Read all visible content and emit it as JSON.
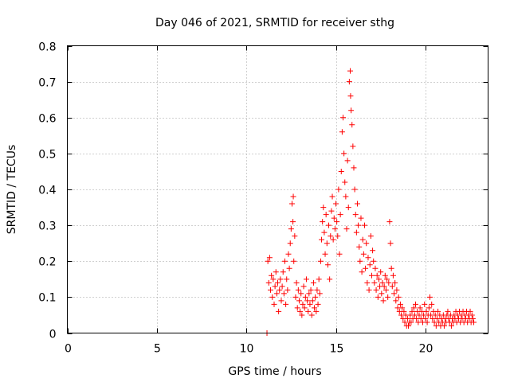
{
  "chart_data": {
    "type": "scatter",
    "title": "Day 046 of 2021, SRMTID for receiver sthg",
    "xlabel": "GPS time / hours",
    "ylabel": "SRMTID / TECUs",
    "xlim": [
      0,
      23.5
    ],
    "ylim": [
      0,
      0.8
    ],
    "xticks": [
      0,
      5,
      10,
      15,
      20
    ],
    "xtick_labels": [
      "0",
      "5",
      "10",
      "15",
      "20"
    ],
    "yticks": [
      0,
      0.1,
      0.2,
      0.3,
      0.4,
      0.5,
      0.6,
      0.7,
      0.8
    ],
    "ytick_labels": [
      "0",
      "0.1",
      "0.2",
      "0.3",
      "0.4",
      "0.5",
      "0.6",
      "0.7",
      "0.8"
    ],
    "grid": true,
    "marker": "+",
    "series_color": "#ff0000",
    "series": [
      {
        "name": "SRMTID",
        "points": [
          [
            11.15,
            0.0
          ],
          [
            11.2,
            0.2
          ],
          [
            11.25,
            0.14
          ],
          [
            11.3,
            0.21
          ],
          [
            11.35,
            0.12
          ],
          [
            11.4,
            0.16
          ],
          [
            11.45,
            0.1
          ],
          [
            11.5,
            0.15
          ],
          [
            11.55,
            0.08
          ],
          [
            11.6,
            0.13
          ],
          [
            11.65,
            0.17
          ],
          [
            11.7,
            0.11
          ],
          [
            11.75,
            0.14
          ],
          [
            11.8,
            0.06
          ],
          [
            11.85,
            0.12
          ],
          [
            11.9,
            0.15
          ],
          [
            11.95,
            0.09
          ],
          [
            12.0,
            0.13
          ],
          [
            12.05,
            0.17
          ],
          [
            12.1,
            0.11
          ],
          [
            12.15,
            0.2
          ],
          [
            12.2,
            0.08
          ],
          [
            12.25,
            0.15
          ],
          [
            12.3,
            0.12
          ],
          [
            12.35,
            0.22
          ],
          [
            12.4,
            0.18
          ],
          [
            12.45,
            0.25
          ],
          [
            12.5,
            0.29
          ],
          [
            12.55,
            0.36
          ],
          [
            12.6,
            0.31
          ],
          [
            12.62,
            0.38
          ],
          [
            12.65,
            0.2
          ],
          [
            12.7,
            0.27
          ],
          [
            12.75,
            0.1
          ],
          [
            12.8,
            0.14
          ],
          [
            12.85,
            0.07
          ],
          [
            12.9,
            0.12
          ],
          [
            12.95,
            0.09
          ],
          [
            13.0,
            0.06
          ],
          [
            13.05,
            0.11
          ],
          [
            13.1,
            0.05
          ],
          [
            13.15,
            0.08
          ],
          [
            13.2,
            0.13
          ],
          [
            13.25,
            0.07
          ],
          [
            13.3,
            0.1
          ],
          [
            13.35,
            0.15
          ],
          [
            13.4,
            0.09
          ],
          [
            13.45,
            0.06
          ],
          [
            13.5,
            0.11
          ],
          [
            13.55,
            0.08
          ],
          [
            13.6,
            0.12
          ],
          [
            13.65,
            0.05
          ],
          [
            13.7,
            0.09
          ],
          [
            13.75,
            0.14
          ],
          [
            13.8,
            0.07
          ],
          [
            13.85,
            0.1
          ],
          [
            13.9,
            0.06
          ],
          [
            13.95,
            0.12
          ],
          [
            14.0,
            0.08
          ],
          [
            14.05,
            0.15
          ],
          [
            14.1,
            0.11
          ],
          [
            14.15,
            0.2
          ],
          [
            14.2,
            0.26
          ],
          [
            14.25,
            0.31
          ],
          [
            14.3,
            0.35
          ],
          [
            14.35,
            0.28
          ],
          [
            14.4,
            0.22
          ],
          [
            14.45,
            0.33
          ],
          [
            14.5,
            0.25
          ],
          [
            14.55,
            0.19
          ],
          [
            14.6,
            0.3
          ],
          [
            14.65,
            0.15
          ],
          [
            14.7,
            0.27
          ],
          [
            14.75,
            0.34
          ],
          [
            14.8,
            0.38
          ],
          [
            14.85,
            0.26
          ],
          [
            14.9,
            0.32
          ],
          [
            14.95,
            0.29
          ],
          [
            15.0,
            0.36
          ],
          [
            15.05,
            0.31
          ],
          [
            15.1,
            0.27
          ],
          [
            15.15,
            0.4
          ],
          [
            15.2,
            0.22
          ],
          [
            15.25,
            0.33
          ],
          [
            15.3,
            0.45
          ],
          [
            15.35,
            0.56
          ],
          [
            15.4,
            0.6
          ],
          [
            15.45,
            0.5
          ],
          [
            15.5,
            0.42
          ],
          [
            15.55,
            0.38
          ],
          [
            15.6,
            0.29
          ],
          [
            15.65,
            0.48
          ],
          [
            15.7,
            0.35
          ],
          [
            15.75,
            0.7
          ],
          [
            15.8,
            0.73
          ],
          [
            15.82,
            0.66
          ],
          [
            15.85,
            0.62
          ],
          [
            15.9,
            0.58
          ],
          [
            15.95,
            0.52
          ],
          [
            16.0,
            0.46
          ],
          [
            16.05,
            0.4
          ],
          [
            16.1,
            0.33
          ],
          [
            16.15,
            0.28
          ],
          [
            16.2,
            0.36
          ],
          [
            16.25,
            0.3
          ],
          [
            16.3,
            0.24
          ],
          [
            16.35,
            0.2
          ],
          [
            16.4,
            0.32
          ],
          [
            16.45,
            0.17
          ],
          [
            16.5,
            0.26
          ],
          [
            16.55,
            0.22
          ],
          [
            16.6,
            0.3
          ],
          [
            16.65,
            0.18
          ],
          [
            16.7,
            0.25
          ],
          [
            16.75,
            0.14
          ],
          [
            16.8,
            0.21
          ],
          [
            16.85,
            0.12
          ],
          [
            16.9,
            0.19
          ],
          [
            16.95,
            0.27
          ],
          [
            17.0,
            0.16
          ],
          [
            17.05,
            0.23
          ],
          [
            17.1,
            0.2
          ],
          [
            17.15,
            0.14
          ],
          [
            17.2,
            0.18
          ],
          [
            17.25,
            0.12
          ],
          [
            17.3,
            0.16
          ],
          [
            17.35,
            0.1
          ],
          [
            17.4,
            0.15
          ],
          [
            17.45,
            0.13
          ],
          [
            17.5,
            0.17
          ],
          [
            17.55,
            0.11
          ],
          [
            17.6,
            0.14
          ],
          [
            17.65,
            0.09
          ],
          [
            17.7,
            0.13
          ],
          [
            17.75,
            0.16
          ],
          [
            17.8,
            0.12
          ],
          [
            17.85,
            0.15
          ],
          [
            17.9,
            0.1
          ],
          [
            17.95,
            0.14
          ],
          [
            18.0,
            0.31
          ],
          [
            18.05,
            0.25
          ],
          [
            18.1,
            0.18
          ],
          [
            18.15,
            0.13
          ],
          [
            18.2,
            0.16
          ],
          [
            18.25,
            0.11
          ],
          [
            18.3,
            0.14
          ],
          [
            18.35,
            0.09
          ],
          [
            18.4,
            0.12
          ],
          [
            18.45,
            0.07
          ],
          [
            18.5,
            0.1
          ],
          [
            18.55,
            0.06
          ],
          [
            18.6,
            0.08
          ],
          [
            18.65,
            0.05
          ],
          [
            18.7,
            0.07
          ],
          [
            18.75,
            0.04
          ],
          [
            18.8,
            0.06
          ],
          [
            18.85,
            0.03
          ],
          [
            18.9,
            0.05
          ],
          [
            18.95,
            0.02
          ],
          [
            19.0,
            0.04
          ],
          [
            19.05,
            0.02
          ],
          [
            19.1,
            0.03
          ],
          [
            19.15,
            0.05
          ],
          [
            19.2,
            0.03
          ],
          [
            19.25,
            0.06
          ],
          [
            19.3,
            0.04
          ],
          [
            19.35,
            0.07
          ],
          [
            19.4,
            0.05
          ],
          [
            19.45,
            0.08
          ],
          [
            19.5,
            0.04
          ],
          [
            19.55,
            0.06
          ],
          [
            19.6,
            0.03
          ],
          [
            19.65,
            0.05
          ],
          [
            19.7,
            0.07
          ],
          [
            19.75,
            0.04
          ],
          [
            19.8,
            0.06
          ],
          [
            19.85,
            0.03
          ],
          [
            19.9,
            0.05
          ],
          [
            19.95,
            0.08
          ],
          [
            20.0,
            0.04
          ],
          [
            20.05,
            0.06
          ],
          [
            20.1,
            0.03
          ],
          [
            20.15,
            0.05
          ],
          [
            20.2,
            0.07
          ],
          [
            20.25,
            0.1
          ],
          [
            20.3,
            0.05
          ],
          [
            20.35,
            0.08
          ],
          [
            20.4,
            0.04
          ],
          [
            20.45,
            0.06
          ],
          [
            20.5,
            0.03
          ],
          [
            20.55,
            0.05
          ],
          [
            20.6,
            0.02
          ],
          [
            20.65,
            0.04
          ],
          [
            20.7,
            0.06
          ],
          [
            20.75,
            0.03
          ],
          [
            20.8,
            0.05
          ],
          [
            20.85,
            0.02
          ],
          [
            20.9,
            0.04
          ],
          [
            20.95,
            0.03
          ],
          [
            21.0,
            0.05
          ],
          [
            21.05,
            0.02
          ],
          [
            21.1,
            0.04
          ],
          [
            21.15,
            0.03
          ],
          [
            21.2,
            0.05
          ],
          [
            21.25,
            0.06
          ],
          [
            21.3,
            0.04
          ],
          [
            21.35,
            0.03
          ],
          [
            21.4,
            0.05
          ],
          [
            21.45,
            0.02
          ],
          [
            21.5,
            0.04
          ],
          [
            21.55,
            0.03
          ],
          [
            21.6,
            0.05
          ],
          [
            21.65,
            0.04
          ],
          [
            21.7,
            0.06
          ],
          [
            21.75,
            0.03
          ],
          [
            21.8,
            0.05
          ],
          [
            21.85,
            0.04
          ],
          [
            21.9,
            0.06
          ],
          [
            21.95,
            0.03
          ],
          [
            22.0,
            0.05
          ],
          [
            22.05,
            0.04
          ],
          [
            22.1,
            0.06
          ],
          [
            22.15,
            0.03
          ],
          [
            22.2,
            0.05
          ],
          [
            22.25,
            0.04
          ],
          [
            22.3,
            0.06
          ],
          [
            22.35,
            0.03
          ],
          [
            22.4,
            0.05
          ],
          [
            22.45,
            0.04
          ],
          [
            22.5,
            0.06
          ],
          [
            22.55,
            0.03
          ],
          [
            22.6,
            0.05
          ],
          [
            22.65,
            0.04
          ],
          [
            22.7,
            0.03
          ]
        ]
      }
    ]
  }
}
